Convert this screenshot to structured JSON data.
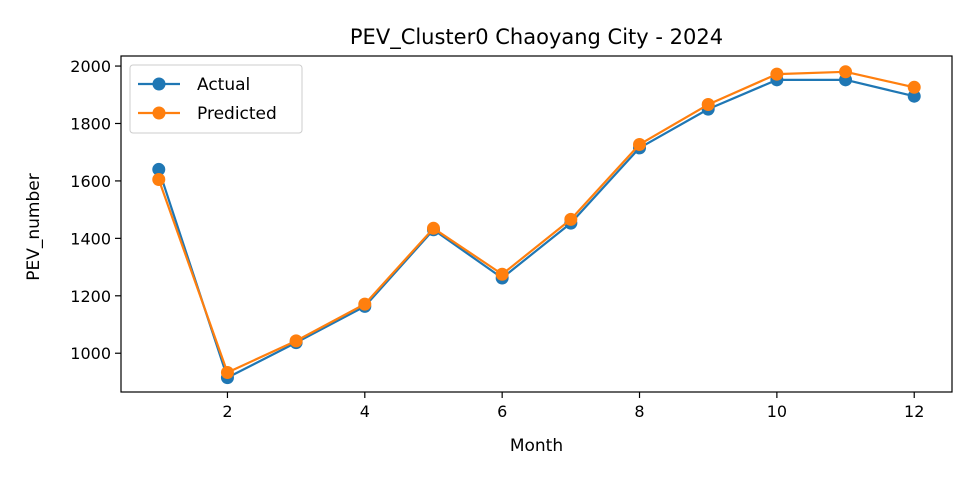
{
  "chart_data": {
    "type": "line",
    "title": "PEV_Cluster0 Chaoyang City - 2024",
    "xlabel": "Month",
    "ylabel": "PEV_number",
    "x": [
      1,
      2,
      3,
      4,
      5,
      6,
      7,
      8,
      9,
      10,
      11,
      12
    ],
    "xticks": [
      2,
      4,
      6,
      8,
      10,
      12
    ],
    "yticks": [
      1000,
      1200,
      1400,
      1600,
      1800,
      2000
    ],
    "xlim": [
      0.45,
      12.55
    ],
    "ylim": [
      865,
      2035
    ],
    "grid": false,
    "legend_position": "top-left",
    "series": [
      {
        "name": "Actual",
        "color": "#1f77b4",
        "values": [
          1640,
          915,
          1037,
          1163,
          1430,
          1262,
          1453,
          1715,
          1850,
          1952,
          1952,
          1895
        ]
      },
      {
        "name": "Predicted",
        "color": "#ff7f0e",
        "values": [
          1605,
          933,
          1043,
          1171,
          1435,
          1275,
          1466,
          1727,
          1866,
          1972,
          1980,
          1926
        ]
      }
    ]
  }
}
